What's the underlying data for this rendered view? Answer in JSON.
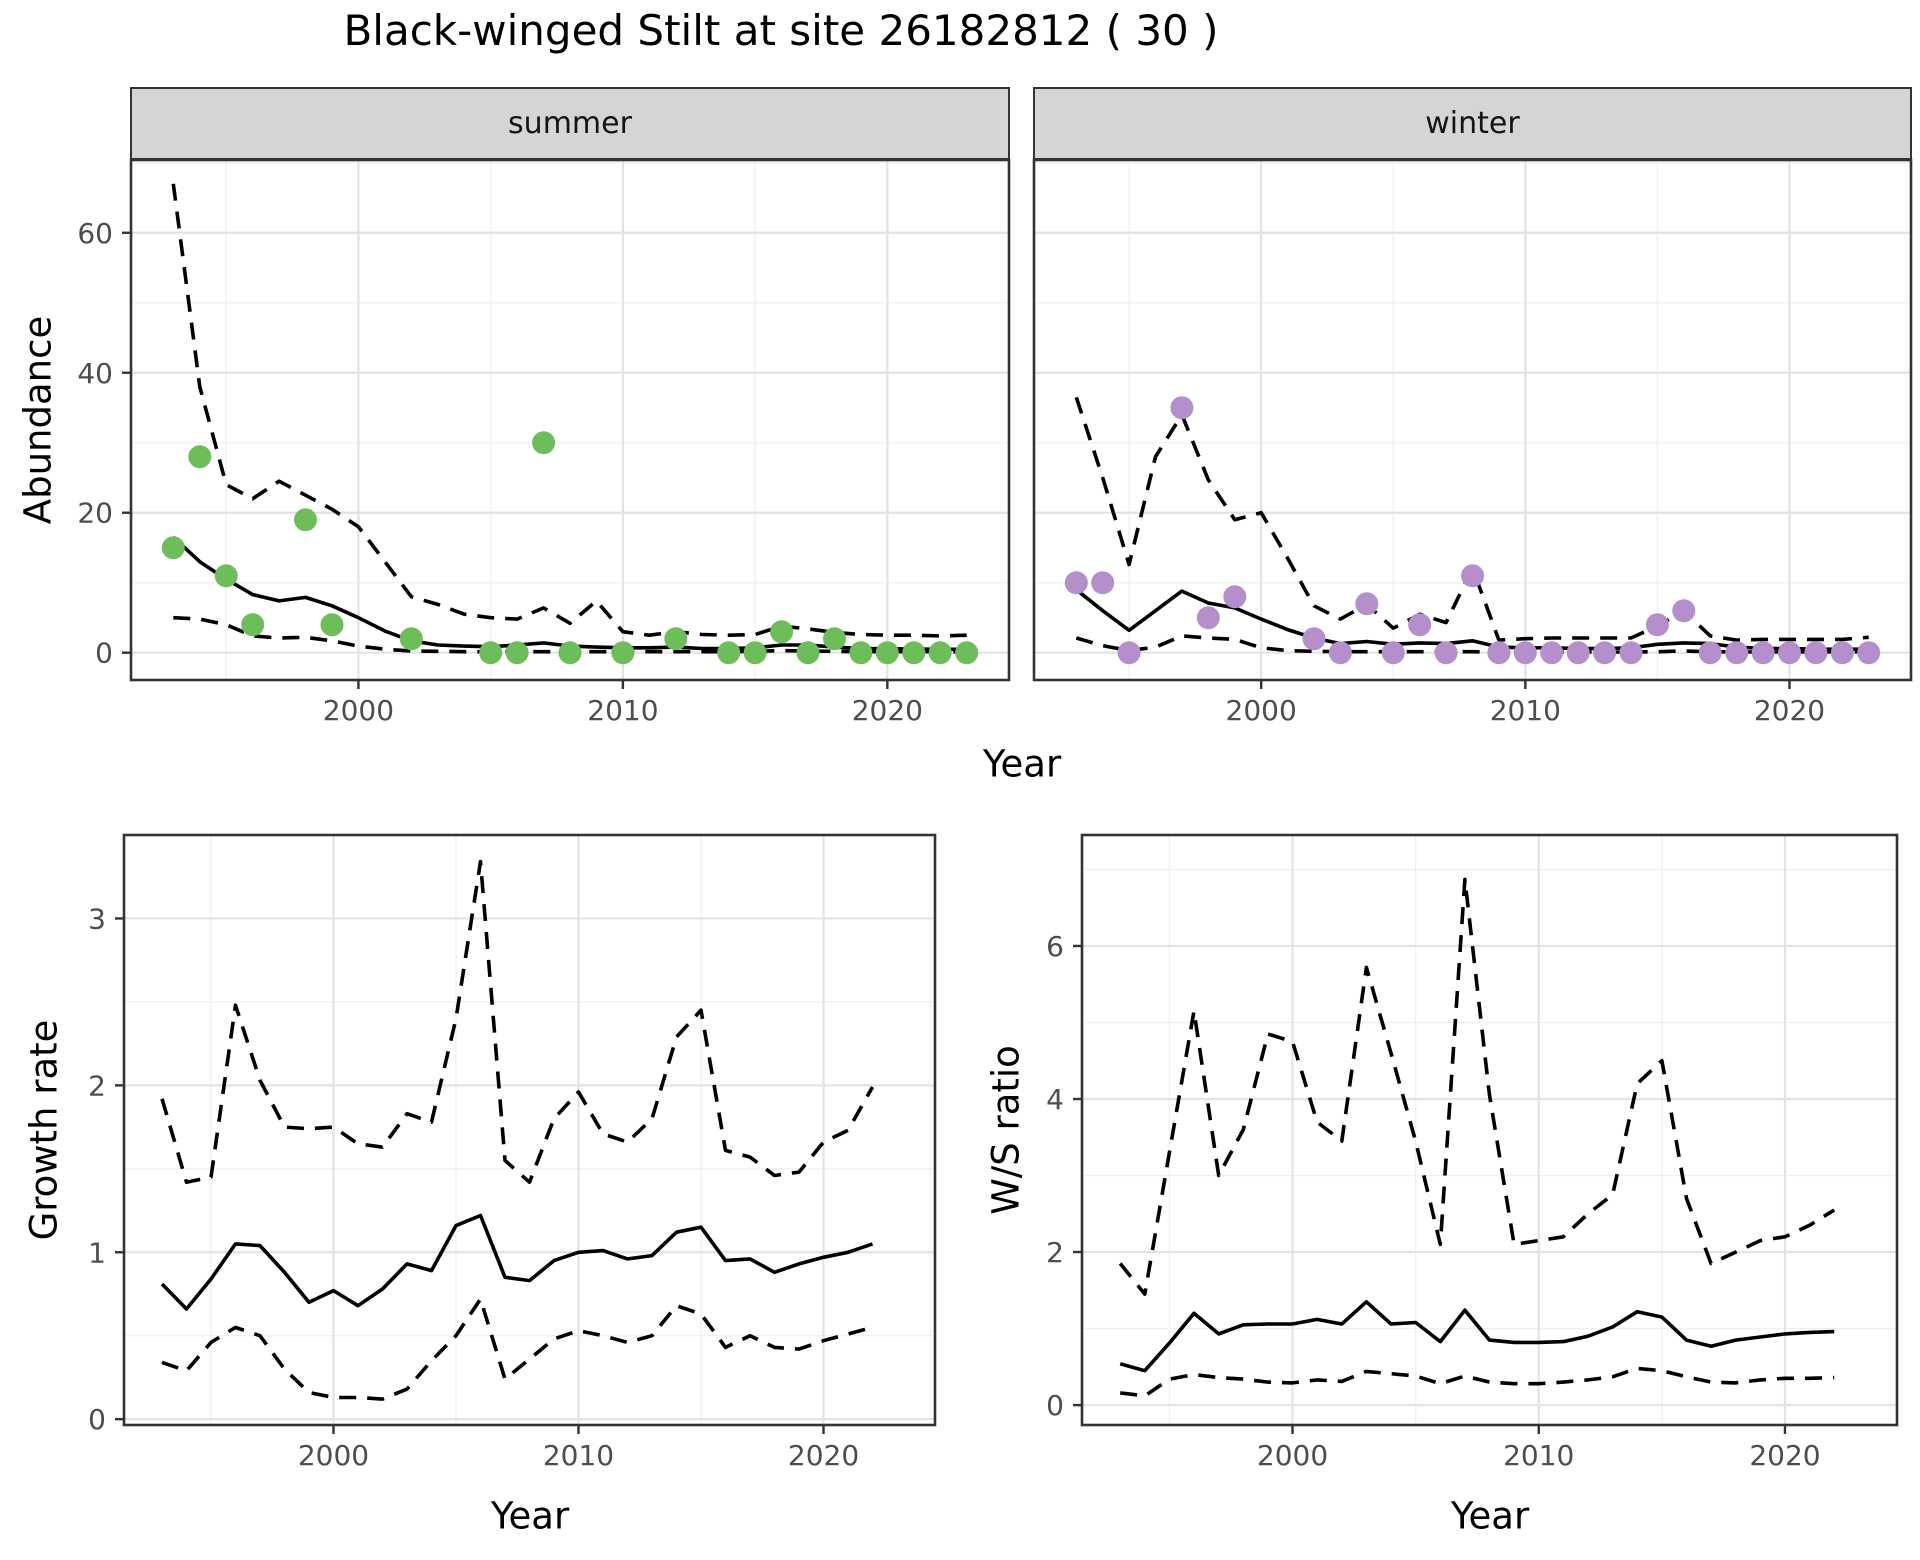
{
  "title": "Black-winged Stilt at site 26182812 ( 30 )",
  "colors": {
    "summer_point": "#6EBD5B",
    "winter_point": "#B48FCB",
    "line": "#000000",
    "strip_background": "#D5D5D5",
    "panel_border": "#333333",
    "grid_major": "#E3E3E3",
    "grid_minor": "#F0F0F0",
    "tick_label": "#4D4D4D"
  },
  "chart_data": [
    {
      "id": "abundance-summer",
      "type": "line",
      "facet_label": "summer",
      "xlabel": "Year",
      "ylabel": "Abundance",
      "xlim": [
        1991.4,
        2024.6
      ],
      "ylim": [
        -3.9,
        70.4
      ],
      "x_ticks": [
        2000,
        2010,
        2020
      ],
      "x_minor": [
        1995,
        2005,
        2015
      ],
      "y_ticks": [
        0,
        20,
        40,
        60
      ],
      "y_minor": [
        10,
        30,
        50,
        70
      ],
      "years": [
        1993,
        1994,
        1995,
        1996,
        1997,
        1998,
        1999,
        2000,
        2001,
        2002,
        2003,
        2004,
        2005,
        2006,
        2007,
        2008,
        2009,
        2010,
        2011,
        2012,
        2013,
        2014,
        2015,
        2016,
        2017,
        2018,
        2019,
        2020,
        2021,
        2022,
        2023
      ],
      "series": [
        {
          "name": "upper_ci",
          "style": "dashed",
          "values": [
            67,
            38,
            24,
            22,
            24.5,
            22.5,
            20.5,
            18,
            13,
            8,
            6.9,
            5.5,
            5.0,
            4.8,
            6.4,
            4.2,
            7.4,
            3.0,
            2.5,
            3.0,
            2.6,
            2.5,
            2.6,
            3.8,
            3.4,
            2.9,
            2.6,
            2.5,
            2.5,
            2.4,
            2.5
          ]
        },
        {
          "name": "mean",
          "style": "solid",
          "values": [
            16.5,
            13,
            10.5,
            8.3,
            7.4,
            7.9,
            6.7,
            5.0,
            3.1,
            1.7,
            1.1,
            0.95,
            0.86,
            1.1,
            1.4,
            0.95,
            0.8,
            0.7,
            0.7,
            0.8,
            0.6,
            0.6,
            0.7,
            1.1,
            1.1,
            0.8,
            0.6,
            0.57,
            0.52,
            0.48,
            0.48
          ]
        },
        {
          "name": "lower_ci",
          "style": "dashed",
          "values": [
            5.0,
            4.8,
            4.0,
            2.4,
            2.1,
            2.2,
            1.7,
            0.95,
            0.5,
            0.25,
            0.2,
            0.15,
            0.15,
            0.15,
            0.15,
            0.15,
            0.15,
            0.15,
            0.15,
            0.15,
            0.15,
            0.15,
            0.2,
            0.3,
            0.25,
            0.2,
            0.15,
            0.15,
            0.15,
            0.15,
            0.15
          ]
        }
      ],
      "points": [
        [
          1993,
          15
        ],
        [
          1994,
          28
        ],
        [
          1995,
          11
        ],
        [
          1996,
          4
        ],
        [
          1998,
          19
        ],
        [
          1999,
          4
        ],
        [
          2002,
          2
        ],
        [
          2005,
          0
        ],
        [
          2006,
          0
        ],
        [
          2007,
          30
        ],
        [
          2008,
          0
        ],
        [
          2010,
          0
        ],
        [
          2012,
          2
        ],
        [
          2014,
          0
        ],
        [
          2015,
          0
        ],
        [
          2016,
          3
        ],
        [
          2017,
          0
        ],
        [
          2018,
          2
        ],
        [
          2019,
          0
        ],
        [
          2020,
          0
        ],
        [
          2021,
          0
        ],
        [
          2022,
          0
        ],
        [
          2023,
          0
        ]
      ],
      "point_color": "#6EBD5B"
    },
    {
      "id": "abundance-winter",
      "type": "line",
      "facet_label": "winter",
      "xlabel": "Year",
      "ylabel": "Abundance",
      "xlim": [
        1991.4,
        2024.6
      ],
      "ylim": [
        -3.9,
        70.4
      ],
      "x_ticks": [
        2000,
        2010,
        2020
      ],
      "x_minor": [
        1995,
        2005,
        2015
      ],
      "y_ticks": [
        0,
        20,
        40,
        60
      ],
      "y_minor": [
        10,
        30,
        50,
        70
      ],
      "years": [
        1993,
        1994,
        1995,
        1996,
        1997,
        1998,
        1999,
        2000,
        2001,
        2002,
        2003,
        2004,
        2005,
        2006,
        2007,
        2008,
        2009,
        2010,
        2011,
        2012,
        2013,
        2014,
        2015,
        2016,
        2017,
        2018,
        2019,
        2020,
        2021,
        2022,
        2023
      ],
      "series": [
        {
          "name": "upper_ci",
          "style": "dashed",
          "values": [
            36.5,
            25,
            12.6,
            28,
            34,
            24.7,
            19,
            20,
            13.5,
            6.7,
            4.8,
            6.9,
            3.5,
            5.5,
            4.3,
            12.1,
            1.8,
            2.0,
            2.1,
            2.1,
            2.1,
            2.1,
            3.8,
            6.0,
            2.4,
            1.8,
            1.9,
            1.9,
            1.9,
            1.9,
            2.2
          ]
        },
        {
          "name": "mean",
          "style": "solid",
          "values": [
            9,
            6,
            3.2,
            6,
            8.8,
            7.1,
            6.4,
            4.8,
            3.3,
            2.1,
            1.3,
            1.6,
            1.2,
            1.4,
            1.3,
            1.7,
            0.8,
            0.7,
            0.7,
            0.6,
            0.6,
            0.7,
            1.2,
            1.4,
            1.3,
            0.8,
            0.6,
            0.6,
            0.5,
            0.5,
            0.5
          ]
        },
        {
          "name": "lower_ci",
          "style": "dashed",
          "values": [
            2.1,
            1.0,
            0.3,
            0.8,
            2.4,
            2.1,
            1.9,
            0.7,
            0.3,
            0.2,
            0.15,
            0.15,
            0.15,
            0.15,
            0.15,
            0.15,
            0.1,
            0.1,
            0.1,
            0.1,
            0.1,
            0.1,
            0.15,
            0.25,
            0.15,
            0.1,
            0.1,
            0.1,
            0.1,
            0.1,
            0.15
          ]
        }
      ],
      "points": [
        [
          1993,
          10
        ],
        [
          1994,
          10
        ],
        [
          1995,
          0
        ],
        [
          1997,
          35
        ],
        [
          1998,
          5
        ],
        [
          1999,
          8
        ],
        [
          2002,
          2
        ],
        [
          2003,
          0
        ],
        [
          2004,
          7
        ],
        [
          2005,
          0
        ],
        [
          2006,
          4
        ],
        [
          2007,
          0
        ],
        [
          2008,
          11
        ],
        [
          2009,
          0
        ],
        [
          2010,
          0
        ],
        [
          2011,
          0
        ],
        [
          2012,
          0
        ],
        [
          2013,
          0
        ],
        [
          2014,
          0
        ],
        [
          2015,
          4
        ],
        [
          2016,
          6
        ],
        [
          2017,
          0
        ],
        [
          2018,
          0
        ],
        [
          2019,
          0
        ],
        [
          2020,
          0
        ],
        [
          2021,
          0
        ],
        [
          2022,
          0
        ],
        [
          2023,
          0
        ]
      ],
      "point_color": "#B48FCB"
    },
    {
      "id": "growth-rate",
      "type": "line",
      "facet_label": null,
      "xlabel": "Year",
      "ylabel": "Growth rate",
      "xlim": [
        1991.45,
        2024.55
      ],
      "ylim": [
        -0.035,
        3.5
      ],
      "x_ticks": [
        2000,
        2010,
        2020
      ],
      "x_minor": [
        1995,
        2005,
        2015
      ],
      "y_ticks": [
        0,
        1,
        2,
        3
      ],
      "y_minor": [
        0.5,
        1.5,
        2.5,
        3.5
      ],
      "years": [
        1993,
        1994,
        1995,
        1996,
        1997,
        1998,
        1999,
        2000,
        2001,
        2002,
        2003,
        2004,
        2005,
        2006,
        2007,
        2008,
        2009,
        2010,
        2011,
        2012,
        2013,
        2014,
        2015,
        2016,
        2017,
        2018,
        2019,
        2020,
        2021,
        2022
      ],
      "series": [
        {
          "name": "upper_ci",
          "style": "dashed",
          "values": [
            1.92,
            1.42,
            1.45,
            2.48,
            2.03,
            1.75,
            1.74,
            1.75,
            1.65,
            1.63,
            1.83,
            1.78,
            2.4,
            3.34,
            1.55,
            1.42,
            1.8,
            1.96,
            1.71,
            1.66,
            1.8,
            2.29,
            2.45,
            1.61,
            1.57,
            1.46,
            1.48,
            1.66,
            1.73,
            1.99
          ]
        },
        {
          "name": "mean",
          "style": "solid",
          "values": [
            0.81,
            0.66,
            0.84,
            1.05,
            1.04,
            0.88,
            0.7,
            0.77,
            0.68,
            0.78,
            0.93,
            0.89,
            1.16,
            1.22,
            0.85,
            0.83,
            0.95,
            1.0,
            1.01,
            0.96,
            0.98,
            1.12,
            1.15,
            0.95,
            0.96,
            0.88,
            0.93,
            0.97,
            1.0,
            1.05
          ]
        },
        {
          "name": "lower_ci",
          "style": "dashed",
          "values": [
            0.34,
            0.29,
            0.46,
            0.55,
            0.5,
            0.3,
            0.16,
            0.13,
            0.13,
            0.12,
            0.18,
            0.35,
            0.5,
            0.72,
            0.24,
            0.36,
            0.48,
            0.53,
            0.5,
            0.46,
            0.5,
            0.68,
            0.63,
            0.43,
            0.5,
            0.43,
            0.42,
            0.47,
            0.51,
            0.55
          ]
        }
      ],
      "points": [],
      "point_color": null
    },
    {
      "id": "ws-ratio",
      "type": "line",
      "facet_label": null,
      "xlabel": "Year",
      "ylabel": "W/S ratio",
      "xlim": [
        1991.45,
        2024.55
      ],
      "ylim": [
        -0.26,
        7.45
      ],
      "x_ticks": [
        2000,
        2010,
        2020
      ],
      "x_minor": [
        1995,
        2005,
        2015
      ],
      "y_ticks": [
        0,
        2,
        4,
        6
      ],
      "y_minor": [
        1,
        3,
        5,
        7
      ],
      "years": [
        1993,
        1994,
        1995,
        1996,
        1997,
        1998,
        1999,
        2000,
        2001,
        2002,
        2003,
        2004,
        2005,
        2006,
        2007,
        2008,
        2009,
        2010,
        2011,
        2012,
        2013,
        2014,
        2015,
        2016,
        2017,
        2018,
        2019,
        2020,
        2021,
        2022
      ],
      "series": [
        {
          "name": "upper_ci",
          "style": "dashed",
          "values": [
            1.85,
            1.45,
            3.3,
            5.15,
            3.0,
            3.6,
            4.85,
            4.75,
            3.7,
            3.45,
            5.72,
            4.6,
            3.45,
            2.1,
            6.87,
            4.05,
            2.1,
            2.15,
            2.2,
            2.5,
            2.75,
            4.2,
            4.5,
            2.7,
            1.85,
            2.0,
            2.15,
            2.2,
            2.35,
            2.55
          ]
        },
        {
          "name": "mean",
          "style": "solid",
          "values": [
            0.54,
            0.45,
            0.81,
            1.2,
            0.93,
            1.05,
            1.06,
            1.06,
            1.12,
            1.06,
            1.35,
            1.06,
            1.08,
            0.83,
            1.24,
            0.85,
            0.82,
            0.82,
            0.83,
            0.9,
            1.02,
            1.22,
            1.15,
            0.85,
            0.77,
            0.85,
            0.89,
            0.93,
            0.95,
            0.96
          ]
        },
        {
          "name": "lower_ci",
          "style": "dashed",
          "values": [
            0.16,
            0.12,
            0.34,
            0.4,
            0.36,
            0.34,
            0.3,
            0.29,
            0.33,
            0.31,
            0.44,
            0.41,
            0.38,
            0.28,
            0.38,
            0.3,
            0.28,
            0.28,
            0.3,
            0.33,
            0.37,
            0.48,
            0.45,
            0.37,
            0.3,
            0.29,
            0.33,
            0.35,
            0.35,
            0.36
          ]
        }
      ],
      "points": [],
      "point_color": null
    }
  ]
}
